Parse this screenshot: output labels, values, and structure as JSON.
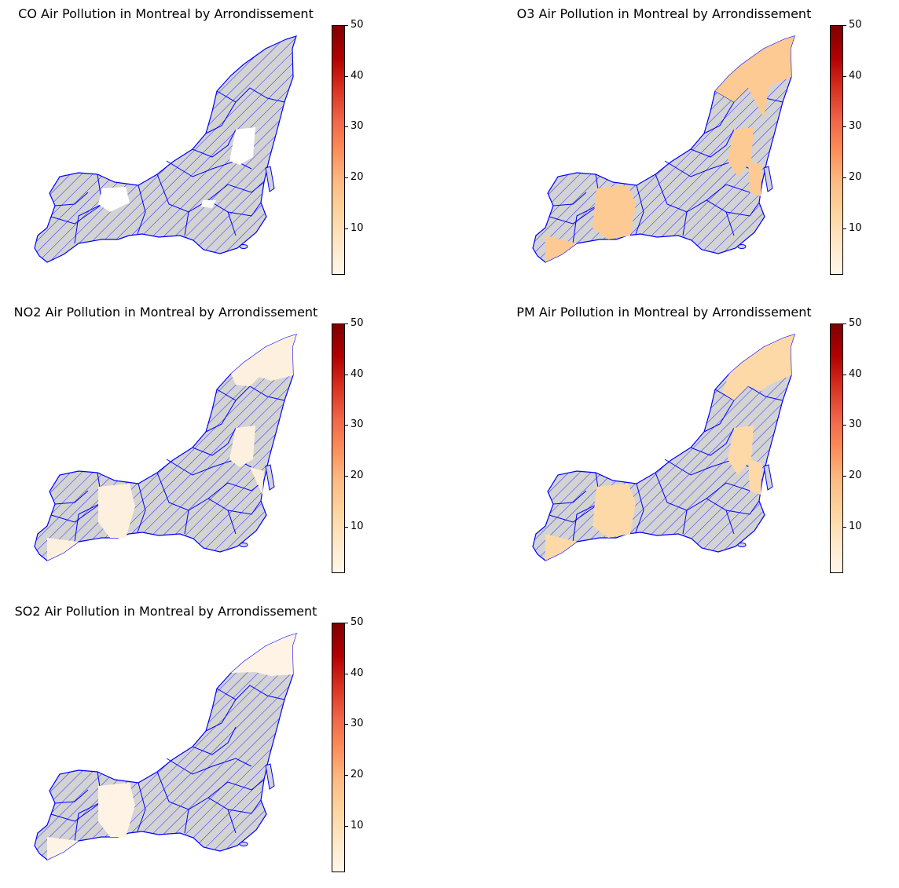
{
  "figure": {
    "panels": [
      {
        "title": "CO Air Pollution in Montreal by Arrondissement",
        "pollutant": "CO",
        "fill_color": "#ffffff",
        "value": 0.5
      },
      {
        "title": "O3 Air Pollution in Montreal by Arrondissement",
        "pollutant": "O3",
        "fill_color": "#fdca94",
        "value": 17
      },
      {
        "title": "NO2 Air Pollution in Montreal by Arrondissement",
        "pollutant": "NO2",
        "fill_color": "#fef0de",
        "value": 3
      },
      {
        "title": "PM Air Pollution in Montreal by Arrondissement",
        "pollutant": "PM",
        "fill_color": "#fdd9a8",
        "value": 13
      },
      {
        "title": "SO2 Air Pollution in Montreal by Arrondissement",
        "pollutant": "SO2",
        "fill_color": "#fff3e6",
        "value": 2
      }
    ],
    "colorbar": {
      "ticks": [
        "10",
        "20",
        "30",
        "40",
        "50"
      ],
      "vmin": 1,
      "vmax": 50,
      "colormap": "OrRd"
    },
    "missing_style": {
      "fill": "#d3d3d3",
      "hatch": "#0000ff",
      "edge": "#0000ff"
    }
  }
}
